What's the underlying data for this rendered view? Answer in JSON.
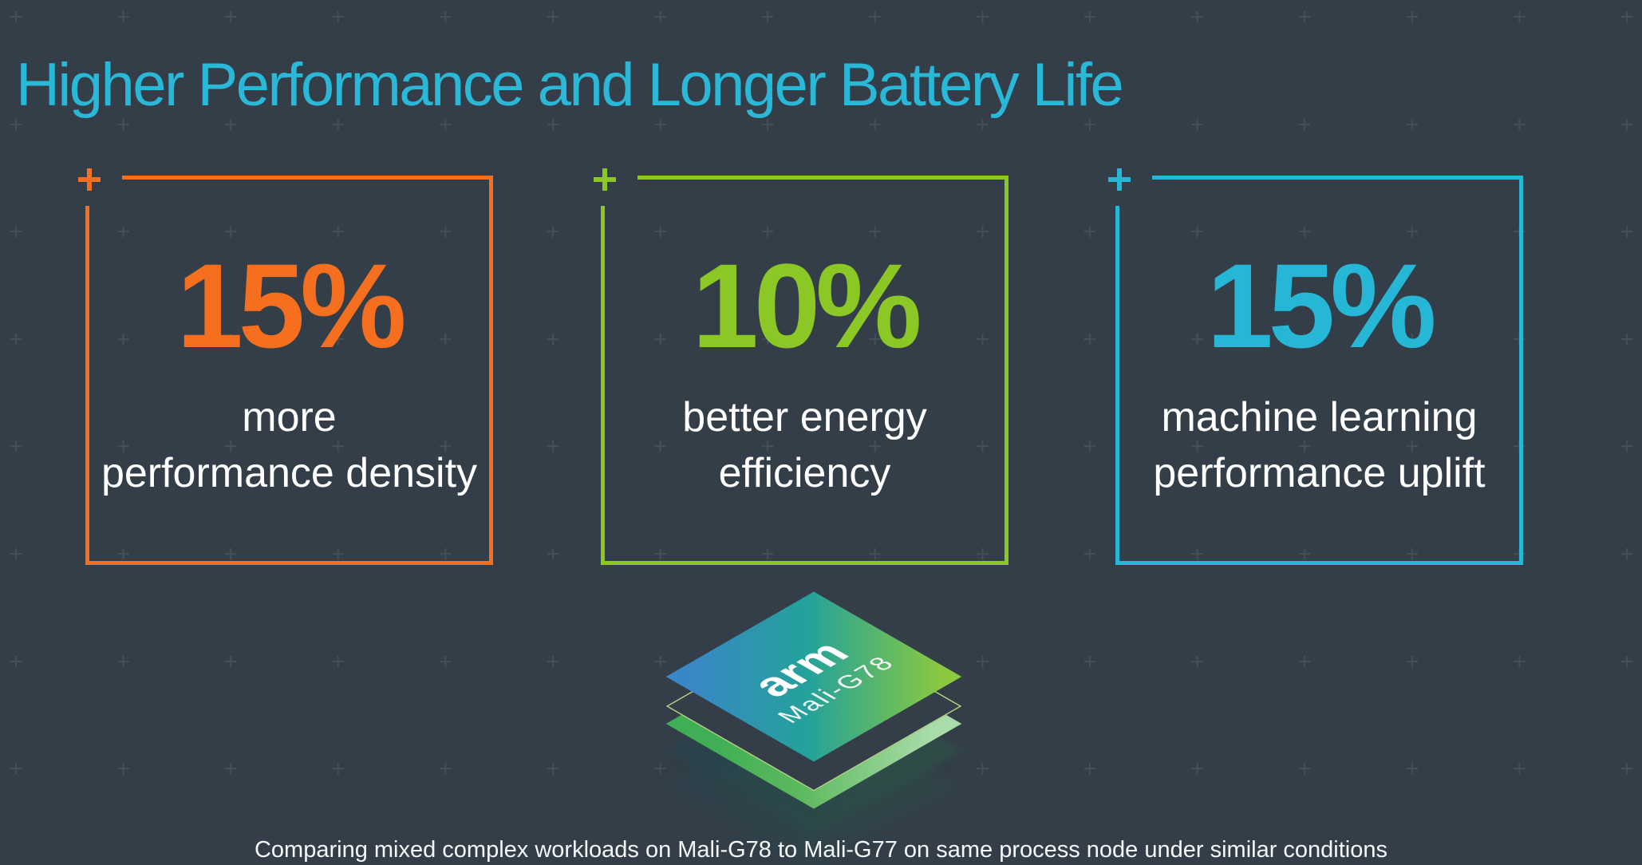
{
  "slide": {
    "title": "Higher Performance and Longer Battery Life",
    "footnote": "Comparing mixed complex workloads on Mali-G78 to Mali-G77 on same process node under similar conditions"
  },
  "stats": [
    {
      "id": "performance-density",
      "value": "15%",
      "label_lines": [
        "more",
        "performance density"
      ],
      "accent": "#f56f1f"
    },
    {
      "id": "energy-efficiency",
      "value": "10%",
      "label_lines": [
        "better energy",
        "efficiency"
      ],
      "accent": "#8bc725"
    },
    {
      "id": "ml-performance",
      "value": "15%",
      "label_lines": [
        "machine learning",
        "performance uplift"
      ],
      "accent": "#26b7d7"
    }
  ],
  "chip": {
    "brand": "arm",
    "product": "Mali-G78"
  },
  "colors": {
    "background": "#333e48",
    "title": "#2ab8d9",
    "pattern_plus": "#434e58",
    "stat_text": "#ffffff",
    "orange": "#f56f1f",
    "green": "#8bc725",
    "cyan": "#26b7d7",
    "chip_gradient_start": "#3a87c6",
    "chip_gradient_mid": "#23a29a",
    "chip_gradient_end": "#8cc93f"
  }
}
